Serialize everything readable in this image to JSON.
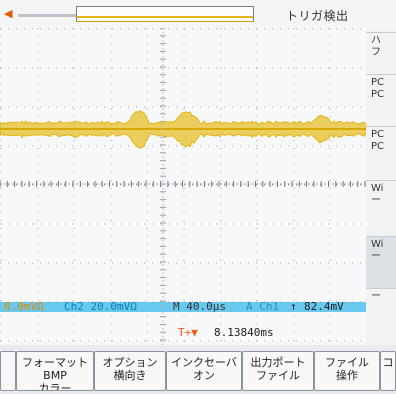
{
  "top": {
    "status": "トリガ検出",
    "trigger_indicator": "trigger-position-icon"
  },
  "readouts": {
    "ch1_scale": "0.0mVΩ",
    "ch2_scale": "Ch2 20.0mVΩ",
    "timebase": "M 40.0µs",
    "trigger_source": "A  Ch1",
    "trigger_slope_icon": "rising-edge-icon",
    "trigger_level": "82.4mV",
    "trigger_time_prefix": "T+▼",
    "trigger_time": "8.13840ms"
  },
  "side_menu": [
    {
      "label": "ハ",
      "sub": "フ"
    },
    {
      "label": "PC",
      "sub": "PC"
    },
    {
      "label": "PC",
      "sub": "PC"
    },
    {
      "label": "Wi",
      "sub": "ー"
    },
    {
      "label": "Wi",
      "sub": "ー"
    },
    {
      "label": "ー",
      "sub": ""
    }
  ],
  "softkeys": [
    {
      "line1": "",
      "line2": ""
    },
    {
      "line1": "フォーマット",
      "line2": "BMP",
      "line3": "カラー"
    },
    {
      "line1": "オプション",
      "line2": "横向き"
    },
    {
      "line1": "インクセーバ",
      "line2": "オン"
    },
    {
      "line1": "出力ポート",
      "line2": "ファイル"
    },
    {
      "line1": "ファイル",
      "line2": "操作"
    },
    {
      "line1": "コ",
      "line2": ""
    }
  ],
  "colors": {
    "ch1": "#e7c02a",
    "ch2": "#32b6e6",
    "accent": "#f05a14"
  }
}
